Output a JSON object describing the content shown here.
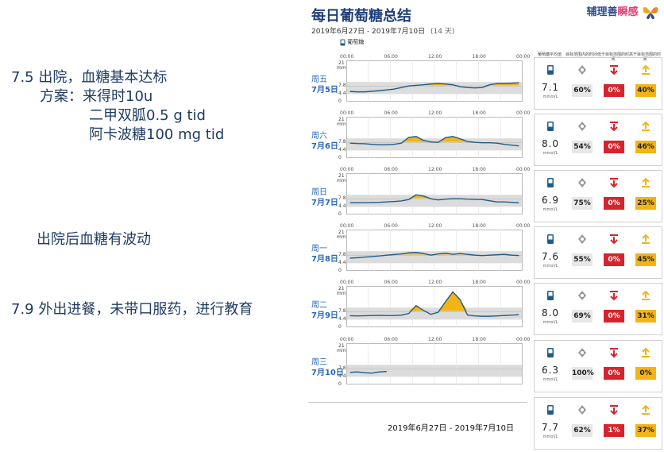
{
  "notes": {
    "line1": "7.5 出院，血糖基本达标",
    "line2": "方案：来得时10u",
    "line3": "二甲双胍0.5 g tid",
    "line4": "阿卡波糖100 mg tid",
    "line5": "出院后血糖有波动",
    "line6": "7.9 外出进餐，未带口服药，进行教育"
  },
  "report": {
    "title": "每日葡萄糖总结",
    "date_range": "2019年6月27日 - 2019年7月10日",
    "days": "(14 天)",
    "legend": "葡萄糖",
    "logo_part1": "辅理善",
    "logo_part2": "瞬感",
    "time_ticks": [
      "00:00",
      "06:00",
      "12:00",
      "18:00",
      "00:00"
    ],
    "y_top": "21",
    "y_unit": "mmol/L",
    "y_78": "7.8",
    "y_44": "4.4",
    "y_0": "0",
    "col_headers": [
      "葡萄糖平均值",
      "目标范围内的时间",
      "低于目标范围的时间",
      "高于目标范围的时间"
    ],
    "mean_unit": "mmol/L",
    "summary_range": "2019年6月27日 - 2019年7月10日",
    "days_data": [
      {
        "weekday": "周五",
        "date": "7月5日",
        "mean": "7.1",
        "in": "60%",
        "low": "0%",
        "high": "40%",
        "curve": [
          5.2,
          5.0,
          5.0,
          5.3,
          5.6,
          6.0,
          6.4,
          7.2,
          8.0,
          8.3,
          8.6,
          9.0,
          9.2,
          9.0,
          8.6,
          7.6,
          7.2,
          7.0,
          7.2,
          8.6,
          9.2,
          9.2,
          9.4,
          9.6
        ]
      },
      {
        "weekday": "周六",
        "date": "7月6日",
        "mean": "8.0",
        "in": "54%",
        "low": "0%",
        "high": "46%",
        "curve": [
          7.6,
          7.4,
          7.3,
          7.0,
          6.8,
          6.8,
          7.0,
          7.6,
          10.5,
          11.0,
          9.0,
          8.2,
          8.0,
          10.4,
          11.0,
          9.8,
          8.4,
          8.0,
          7.8,
          7.8,
          7.6,
          7.0,
          6.6,
          6.2
        ]
      },
      {
        "weekday": "周日",
        "date": "7月7日",
        "mean": "6.9",
        "in": "75%",
        "low": "0%",
        "high": "25%",
        "curve": [
          6.0,
          6.0,
          6.0,
          6.1,
          6.2,
          6.4,
          6.6,
          6.9,
          7.6,
          10.0,
          9.4,
          8.0,
          7.4,
          7.8,
          8.0,
          8.0,
          7.8,
          7.7,
          7.6,
          7.0,
          6.4,
          6.4,
          6.2,
          6.0
        ]
      },
      {
        "weekday": "周一",
        "date": "7月8日",
        "mean": "7.6",
        "in": "55%",
        "low": "0%",
        "high": "45%",
        "curve": [
          6.5,
          6.7,
          7.0,
          7.3,
          7.6,
          8.0,
          8.3,
          8.6,
          9.2,
          9.4,
          8.8,
          8.0,
          8.6,
          9.0,
          8.4,
          8.8,
          8.4,
          8.0,
          7.8,
          8.0,
          8.2,
          8.4,
          8.0,
          7.8
        ]
      },
      {
        "weekday": "周二",
        "date": "7月9日",
        "mean": "8.0",
        "in": "69%",
        "low": "0%",
        "high": "31%",
        "curve": [
          5.9,
          5.8,
          5.9,
          6.0,
          6.1,
          6.0,
          6.0,
          6.2,
          7.0,
          11.0,
          8.6,
          6.6,
          7.6,
          13.0,
          18.0,
          14.0,
          6.2,
          5.8,
          5.6,
          5.6,
          5.8,
          6.0,
          6.2,
          6.4
        ]
      },
      {
        "weekday": "周三",
        "date": "7月10日",
        "mean": "6.3",
        "in": "100%",
        "low": "0%",
        "high": "0%",
        "curve": [
          6.2,
          6.4,
          6.0,
          5.8,
          6.4,
          6.6
        ]
      }
    ],
    "summary": {
      "mean": "7.7",
      "in": "62%",
      "low": "1%",
      "high": "37%"
    },
    "colors": {
      "high_fill": "#f2b417",
      "curve": "#1f5c8a",
      "target_band": "#dcdcdc",
      "low": "#d7232d"
    },
    "y_max": 21,
    "target": [
      3.9,
      10.0
    ]
  }
}
